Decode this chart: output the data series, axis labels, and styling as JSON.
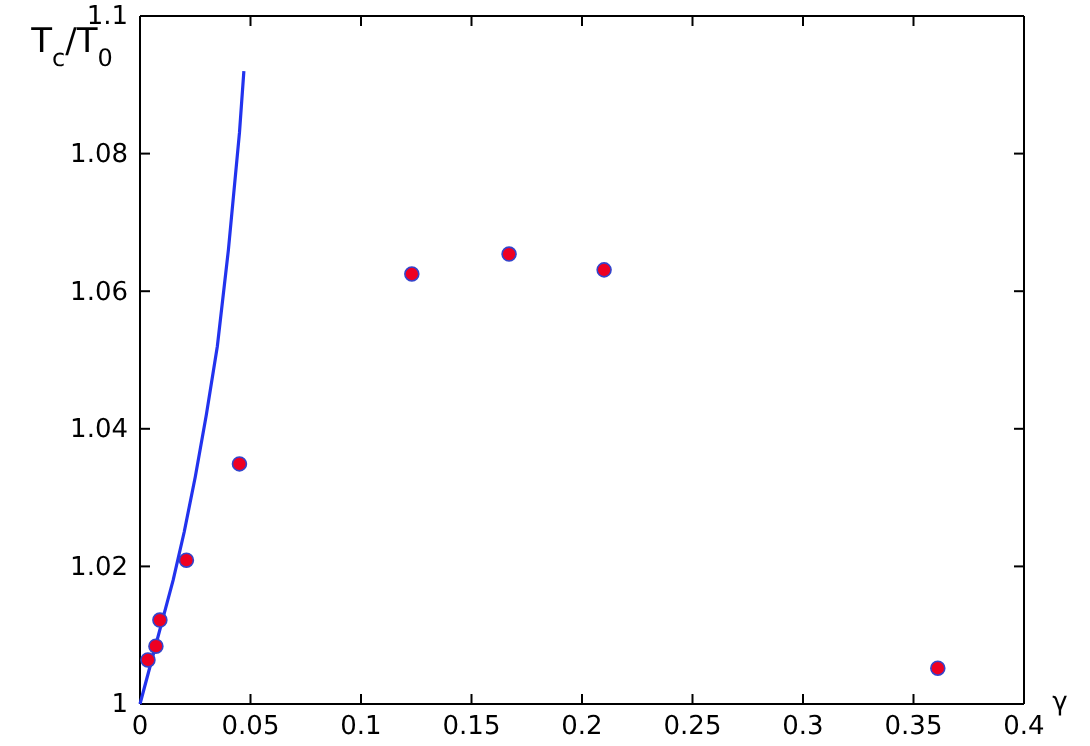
{
  "chart_data": {
    "type": "scatter",
    "xlabel": "γ",
    "ylabel": "T$_{c}$/T$_{0}$",
    "xlim": [
      0,
      0.4
    ],
    "ylim": [
      1,
      1.1
    ],
    "xticks": [
      0,
      0.05,
      0.1,
      0.15,
      0.2,
      0.25,
      0.3,
      0.35,
      0.4
    ],
    "yticks": [
      1,
      1.02,
      1.04,
      1.06,
      1.08,
      1.1
    ],
    "grid": false,
    "marker": "circle",
    "series": [
      {
        "type": "line",
        "marker": "none",
        "color": "#2233ee",
        "x": [
          0,
          0.005,
          0.01,
          0.015,
          0.02,
          0.025,
          0.03,
          0.035,
          0.04,
          0.045,
          0.047
        ],
        "values": [
          1,
          1.006,
          1.012,
          1.018,
          1.025,
          1.033,
          1.042,
          1.052,
          1.066,
          1.083,
          1.092
        ]
      },
      {
        "color": "#ee0022",
        "x": [
          0.0036,
          0.0072,
          0.009,
          0.021,
          0.045,
          0.123,
          0.167,
          0.21,
          0.361
        ],
        "values": [
          1.0064,
          1.0084,
          1.0122,
          1.0209,
          1.0349,
          1.0625,
          1.0654,
          1.0631,
          1.0052
        ]
      }
    ]
  }
}
